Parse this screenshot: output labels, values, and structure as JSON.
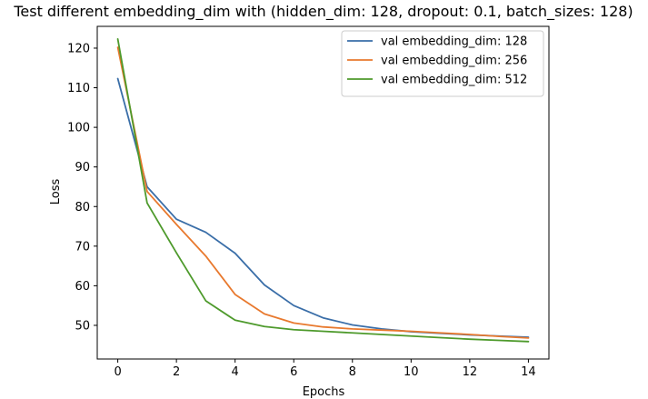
{
  "chart_data": {
    "type": "line",
    "title": "Test different embedding_dim with (hidden_dim: 128, dropout: 0.1, batch_sizes: 128)",
    "xlabel": "Epochs",
    "ylabel": "Loss",
    "x": [
      0,
      1,
      2,
      3,
      4,
      5,
      6,
      7,
      8,
      9,
      10,
      11,
      12,
      13,
      14
    ],
    "xlim": [
      -0.7,
      14.7
    ],
    "ylim": [
      41.5,
      125.5
    ],
    "xticks": [
      0,
      2,
      4,
      6,
      8,
      10,
      12,
      14
    ],
    "yticks": [
      50,
      60,
      70,
      80,
      90,
      100,
      110,
      120
    ],
    "grid": false,
    "legend_position": "upper right",
    "series": [
      {
        "name": "val embedding_dim: 128",
        "color": "#3a6ea8",
        "values": [
          112.3,
          85.0,
          76.8,
          73.5,
          68.2,
          60.2,
          55.0,
          51.9,
          50.1,
          49.1,
          48.4,
          48.0,
          47.6,
          47.3,
          47.0
        ]
      },
      {
        "name": "val embedding_dim: 256",
        "color": "#e8792e",
        "values": [
          120.2,
          83.8,
          75.5,
          67.5,
          57.8,
          52.9,
          50.6,
          49.6,
          49.1,
          48.8,
          48.5,
          48.1,
          47.7,
          47.2,
          46.8
        ]
      },
      {
        "name": "val embedding_dim: 512",
        "color": "#4e9a2c",
        "values": [
          122.3,
          80.9,
          68.3,
          56.2,
          51.3,
          49.7,
          48.9,
          48.5,
          48.1,
          47.7,
          47.3,
          46.9,
          46.5,
          46.2,
          45.9
        ]
      }
    ]
  }
}
